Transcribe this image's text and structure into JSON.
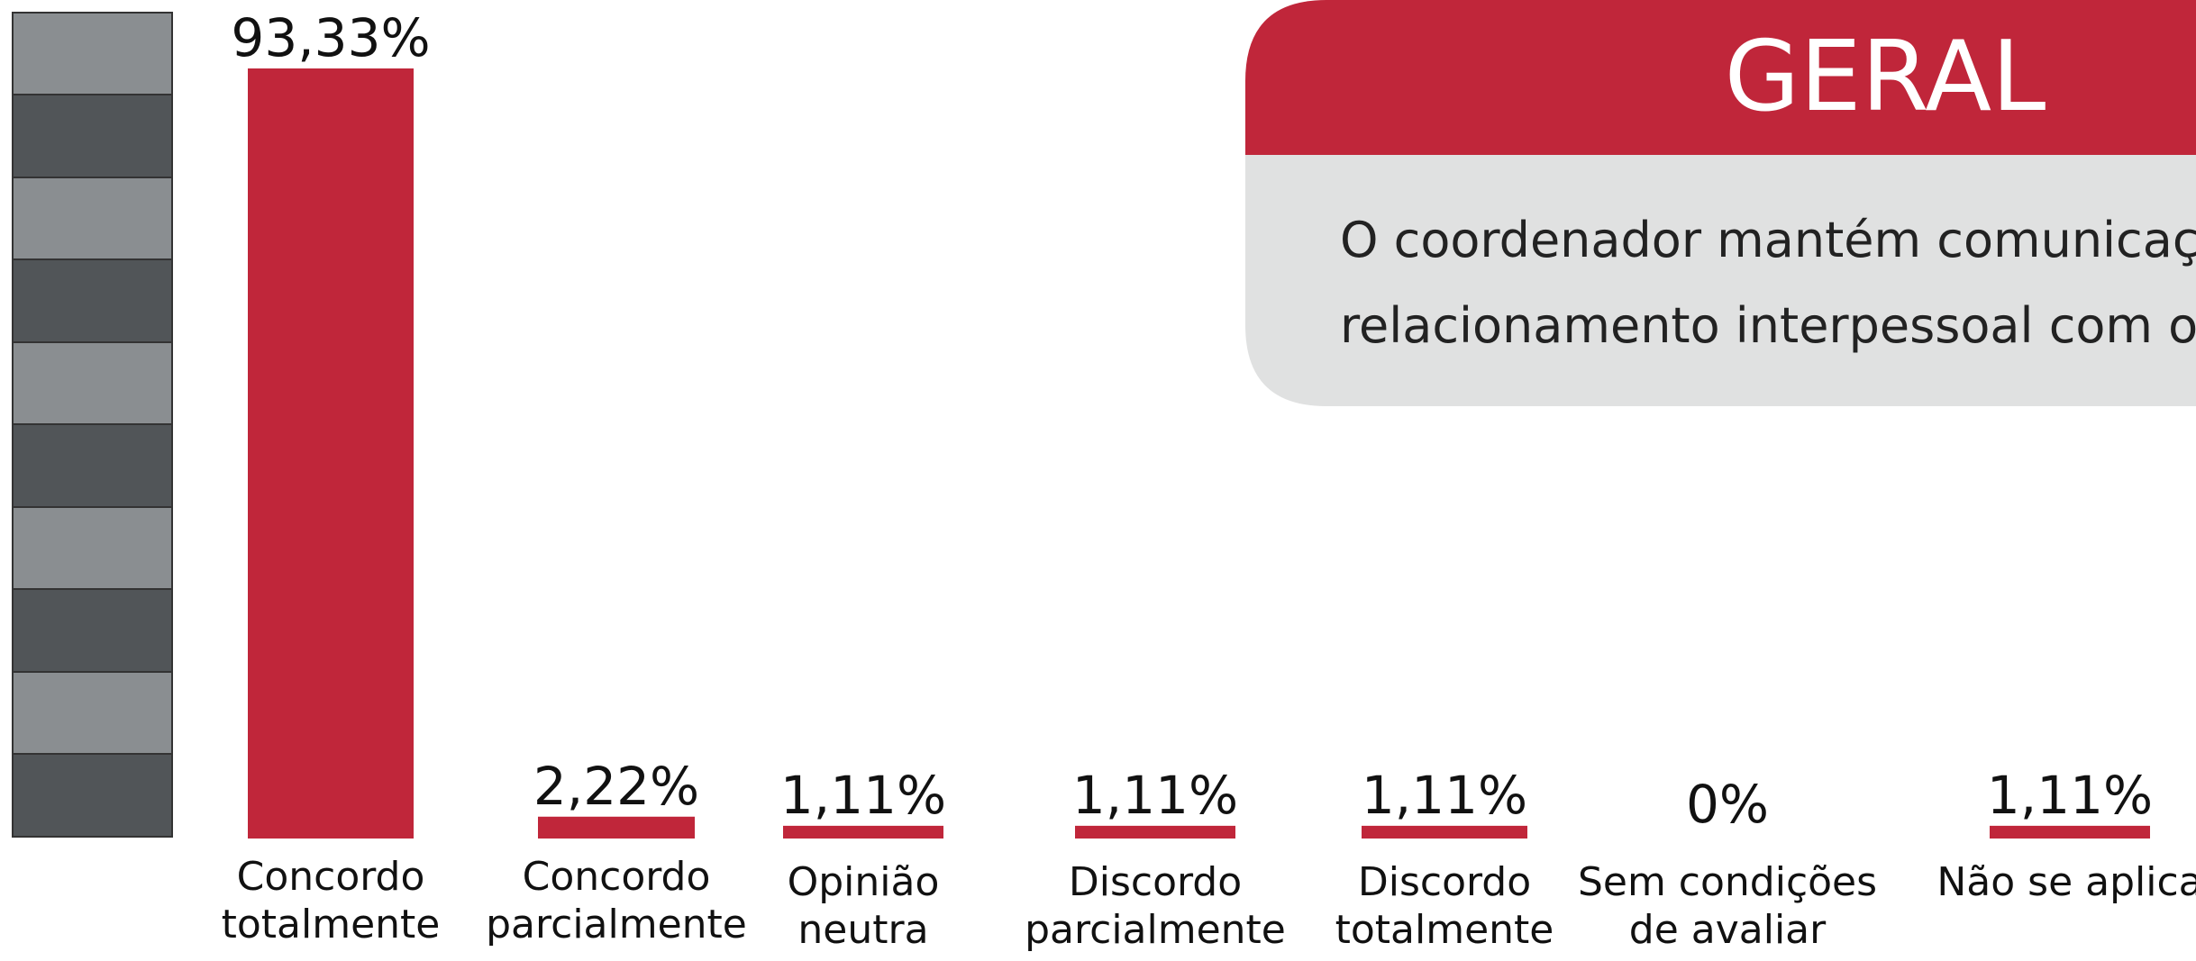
{
  "chart_data": {
    "type": "bar",
    "title": "GERAL",
    "subtitle": [
      "O coordenador mantém comunicação",
      "relacionamento interpessoal com os"
    ],
    "categories": [
      [
        "Concordo",
        "totalmente"
      ],
      [
        "Concordo",
        "parcialmente"
      ],
      [
        "Opinião",
        "neutra"
      ],
      [
        "Discordo",
        "parcialmente"
      ],
      [
        "Discordo",
        "totalmente"
      ],
      [
        "Sem condições",
        "de avaliar"
      ],
      [
        "Não se aplica"
      ]
    ],
    "values": [
      93.33,
      2.22,
      1.11,
      1.11,
      1.11,
      0,
      1.11
    ],
    "value_labels": [
      "93,33%",
      "2,22%",
      "1,11%",
      "1,11%",
      "1,11%",
      "0%",
      "1,11%"
    ],
    "color": "#c0263a"
  }
}
